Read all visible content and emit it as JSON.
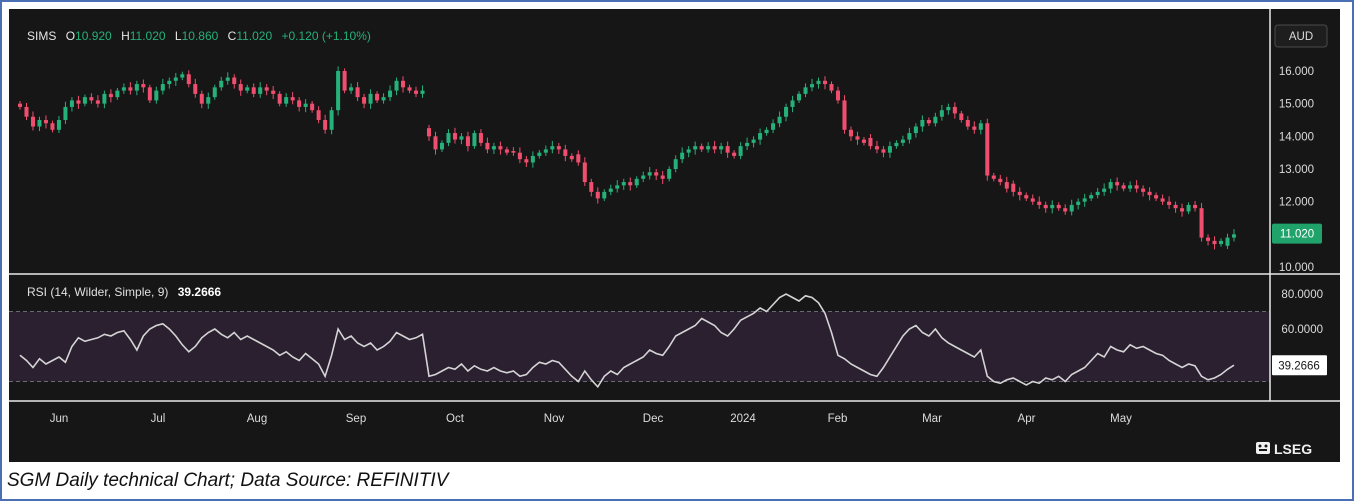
{
  "caption": "SGM Daily technical Chart; Data Source: REFINITIV",
  "brand": "LSEG",
  "currency_button": "AUD",
  "header": {
    "symbol": "SIMS",
    "o_label": "O",
    "o_value": "10.920",
    "h_label": "H",
    "h_value": "11.020",
    "l_label": "L",
    "l_value": "10.860",
    "c_label": "C",
    "c_value": "11.020",
    "change": "+0.120 (+1.10%)"
  },
  "rsi_header": {
    "label": "RSI (14, Wilder, Simple, 9)",
    "value": "39.2666"
  },
  "colors": {
    "up": "#26b07a",
    "down": "#f04e6e",
    "rsi": "#d4d4d4",
    "background": "#161616"
  },
  "chart_data": [
    {
      "type": "candlestick",
      "name": "SIMS",
      "yaxis_ticks": [
        "16.000",
        "15.000",
        "14.000",
        "13.000",
        "12.000",
        "11.000",
        "10.000"
      ],
      "ylim": [
        9.8,
        16.6
      ],
      "last_price_label": "11.020",
      "x_labels": [
        "Jun",
        "Jul",
        "Aug",
        "Sep",
        "Oct",
        "Nov",
        "Dec",
        "2024",
        "Feb",
        "Mar",
        "Apr",
        "May"
      ],
      "x_label_positions": [
        0,
        22,
        44,
        66,
        88,
        110,
        132,
        152,
        173,
        194,
        215,
        236
      ],
      "closes": [
        14.9,
        14.6,
        14.3,
        14.5,
        14.4,
        14.2,
        14.5,
        14.9,
        15.1,
        15.0,
        15.2,
        15.1,
        15.0,
        15.3,
        15.2,
        15.4,
        15.5,
        15.4,
        15.6,
        15.5,
        15.1,
        15.4,
        15.6,
        15.7,
        15.8,
        15.9,
        15.6,
        15.3,
        15.0,
        15.2,
        15.5,
        15.7,
        15.8,
        15.6,
        15.4,
        15.5,
        15.3,
        15.5,
        15.4,
        15.3,
        15.0,
        15.2,
        15.1,
        14.9,
        15.0,
        14.8,
        14.5,
        14.2,
        14.8,
        16.0,
        15.4,
        15.5,
        15.2,
        15.0,
        15.3,
        15.1,
        15.2,
        15.4,
        15.7,
        15.5,
        15.4,
        15.3,
        15.4,
        14.0,
        13.6,
        13.8,
        14.1,
        13.9,
        14.0,
        13.7,
        14.1,
        13.8,
        13.6,
        13.7,
        13.6,
        13.5,
        13.5,
        13.3,
        13.2,
        13.4,
        13.5,
        13.6,
        13.7,
        13.6,
        13.4,
        13.3,
        13.2,
        12.6,
        12.3,
        12.1,
        12.3,
        12.4,
        12.5,
        12.6,
        12.5,
        12.7,
        12.8,
        12.9,
        12.8,
        12.7,
        13.0,
        13.3,
        13.5,
        13.6,
        13.7,
        13.6,
        13.7,
        13.6,
        13.7,
        13.5,
        13.4,
        13.7,
        13.8,
        13.9,
        14.1,
        14.2,
        14.4,
        14.6,
        14.9,
        15.1,
        15.3,
        15.5,
        15.6,
        15.7,
        15.6,
        15.4,
        15.1,
        14.2,
        14.0,
        13.9,
        13.8,
        13.7,
        13.6,
        13.5,
        13.7,
        13.8,
        13.9,
        14.1,
        14.3,
        14.5,
        14.4,
        14.6,
        14.8,
        14.9,
        14.7,
        14.5,
        14.3,
        14.2,
        14.4,
        12.8,
        12.7,
        12.6,
        12.4,
        12.3,
        12.2,
        12.1,
        12.0,
        11.9,
        11.8,
        11.9,
        11.8,
        11.7,
        11.9,
        12.0,
        12.1,
        12.2,
        12.3,
        12.4,
        12.6,
        12.5,
        12.4,
        12.5,
        12.4,
        12.3,
        12.2,
        12.1,
        12.0,
        11.9,
        11.8,
        11.7,
        11.9,
        11.8,
        10.9,
        10.8,
        10.7,
        10.8,
        10.9,
        11.0
      ],
      "gap_after_indices": [
        62,
        85,
        130,
        152,
        185
      ]
    },
    {
      "type": "line",
      "name": "RSI",
      "yaxis_ticks": [
        "80.0000",
        "60.0000"
      ],
      "ylim": [
        25,
        85
      ],
      "band": [
        30,
        70
      ],
      "last_value_label": "39.2666",
      "values": [
        45,
        42,
        38,
        43,
        40,
        42,
        44,
        41,
        50,
        55,
        53,
        54,
        55,
        57,
        56,
        58,
        59,
        54,
        48,
        56,
        60,
        62,
        63,
        60,
        56,
        51,
        47,
        50,
        55,
        58,
        60,
        57,
        55,
        58,
        54,
        56,
        54,
        52,
        50,
        48,
        45,
        47,
        44,
        42,
        46,
        43,
        40,
        33,
        45,
        60,
        54,
        56,
        52,
        50,
        52,
        48,
        50,
        53,
        58,
        56,
        54,
        55,
        57,
        33,
        34,
        36,
        38,
        37,
        40,
        36,
        39,
        37,
        36,
        38,
        36,
        35,
        36,
        33,
        34,
        38,
        41,
        40,
        42,
        41,
        37,
        33,
        30,
        36,
        31,
        27,
        33,
        36,
        34,
        38,
        40,
        42,
        44,
        48,
        46,
        45,
        50,
        56,
        58,
        60,
        62,
        66,
        64,
        62,
        58,
        56,
        60,
        65,
        67,
        69,
        72,
        70,
        74,
        78,
        80,
        78,
        76,
        79,
        78,
        75,
        69,
        58,
        45,
        43,
        40,
        38,
        36,
        34,
        33,
        38,
        44,
        50,
        56,
        60,
        62,
        58,
        56,
        60,
        55,
        52,
        50,
        48,
        46,
        44,
        48,
        33,
        30,
        29,
        31,
        32,
        30,
        28,
        30,
        29,
        32,
        31,
        33,
        30,
        34,
        36,
        38,
        42,
        46,
        44,
        50,
        48,
        47,
        51,
        49,
        50,
        48,
        46,
        45,
        42,
        40,
        38,
        40,
        39,
        33,
        31,
        32,
        34,
        37,
        39.3
      ]
    }
  ]
}
